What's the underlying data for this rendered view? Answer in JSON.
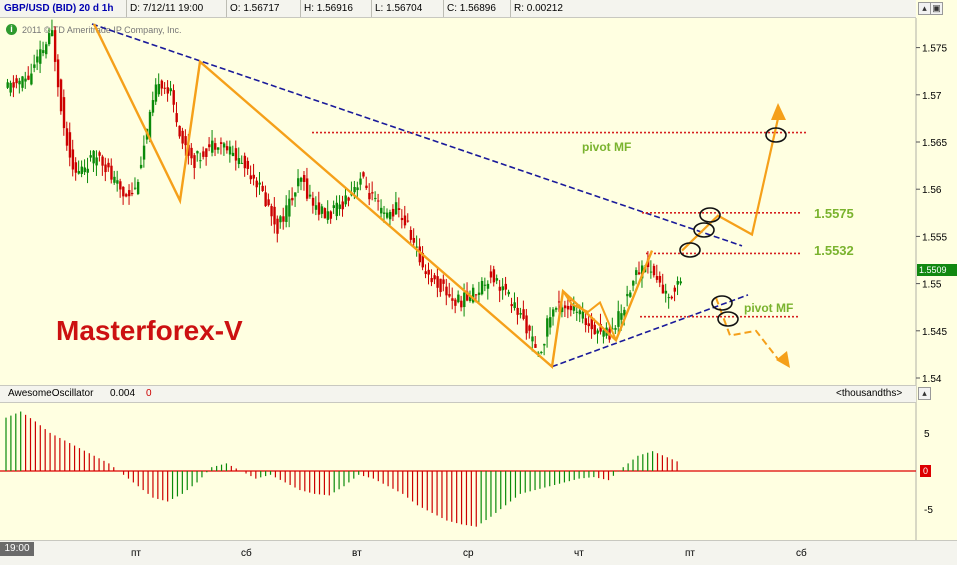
{
  "header": {
    "symbol": "GBP/USD (BID) 20 d 1h",
    "date": "D: 7/12/11 19:00",
    "open": "O: 1.56717",
    "high": "H: 1.56916",
    "low": "L: 1.56704",
    "close": "C: 1.56896",
    "range": "R: 0.00212"
  },
  "copyright": "2011 © TD Ameritrade IP Company, Inc.",
  "watermark": "Masterforex-V",
  "price_axis": {
    "ticks": [
      "1.575",
      "1.57",
      "1.565",
      "1.56",
      "1.555",
      "1.55",
      "1.545",
      "1.54"
    ],
    "current_price": "1.5509"
  },
  "annotations": {
    "pivot_upper": "pivot MF",
    "pivot_lower": "pivot MF",
    "level_1": "1.5575",
    "level_2": "1.5532"
  },
  "oscillator": {
    "name": "AwesomeOscillator",
    "value": "0.004",
    "param": "0",
    "units": "<thousandths>",
    "ticks": [
      "5",
      "0",
      "-5"
    ]
  },
  "xaxis": {
    "time_tag": "19:00",
    "labels": [
      "пт",
      "сб",
      "вт",
      "ср",
      "чт",
      "пт",
      "сб"
    ]
  },
  "colors": {
    "bull": "#0a8a0a",
    "bear": "#cc0000",
    "trend": "#1a1a9a",
    "wave": "#f5a01a",
    "pivot": "#d62020",
    "label_green": "#7ab32e",
    "watermark": "#cc1111"
  },
  "chart_data": {
    "type": "candlestick",
    "y_range": [
      1.54,
      1.5775
    ],
    "x_labels": [
      "пт",
      "сб",
      "вт",
      "ср",
      "чт",
      "пт",
      "сб"
    ],
    "price_path": [
      1.5705,
      1.5712,
      1.5718,
      1.5742,
      1.5765,
      1.5665,
      1.5615,
      1.5628,
      1.5638,
      1.5612,
      1.5595,
      1.56,
      1.566,
      1.5718,
      1.57,
      1.565,
      1.563,
      1.5642,
      1.5652,
      1.564,
      1.5628,
      1.5615,
      1.5588,
      1.556,
      1.5585,
      1.561,
      1.5585,
      1.5572,
      1.5578,
      1.5595,
      1.5612,
      1.559,
      1.557,
      1.558,
      1.556,
      1.5525,
      1.5505,
      1.5495,
      1.548,
      1.5485,
      1.5495,
      1.551,
      1.5495,
      1.5475,
      1.5455,
      1.542,
      1.5468,
      1.548,
      1.5472,
      1.546,
      1.5452,
      1.5448,
      1.547,
      1.5505,
      1.5522,
      1.5505,
      1.5482,
      1.551
    ],
    "wave_points": [
      [
        1.5775
      ],
      [
        1.5588
      ],
      [
        1.5735
      ],
      [
        1.5412
      ],
      [
        1.5492
      ],
      [
        1.544
      ],
      [
        1.5535
      ]
    ],
    "projection_up": [
      1.5535,
      1.5572,
      1.5552,
      1.5675
    ],
    "projection_down": [
      1.5485,
      1.5445,
      1.545,
      1.542
    ],
    "pivot_levels": [
      1.566,
      1.5575,
      1.5532,
      1.5465
    ],
    "oscillator_values": [
      7,
      7.8,
      6.5,
      5,
      4,
      3,
      2,
      1,
      -0.5,
      -2,
      -3.5,
      -4,
      -3,
      -1.5,
      0.5,
      1,
      0,
      -1,
      -0.5,
      -1.5,
      -2.5,
      -3,
      -3.2,
      -2,
      -0.5,
      -1,
      -2,
      -3,
      -4.5,
      -5.5,
      -6.5,
      -7,
      -7.3,
      -6,
      -4.5,
      -3,
      -2.5,
      -2,
      -1.5,
      -1,
      -0.8,
      -1.2,
      0.5,
      2,
      2.6,
      1.8,
      1
    ]
  }
}
